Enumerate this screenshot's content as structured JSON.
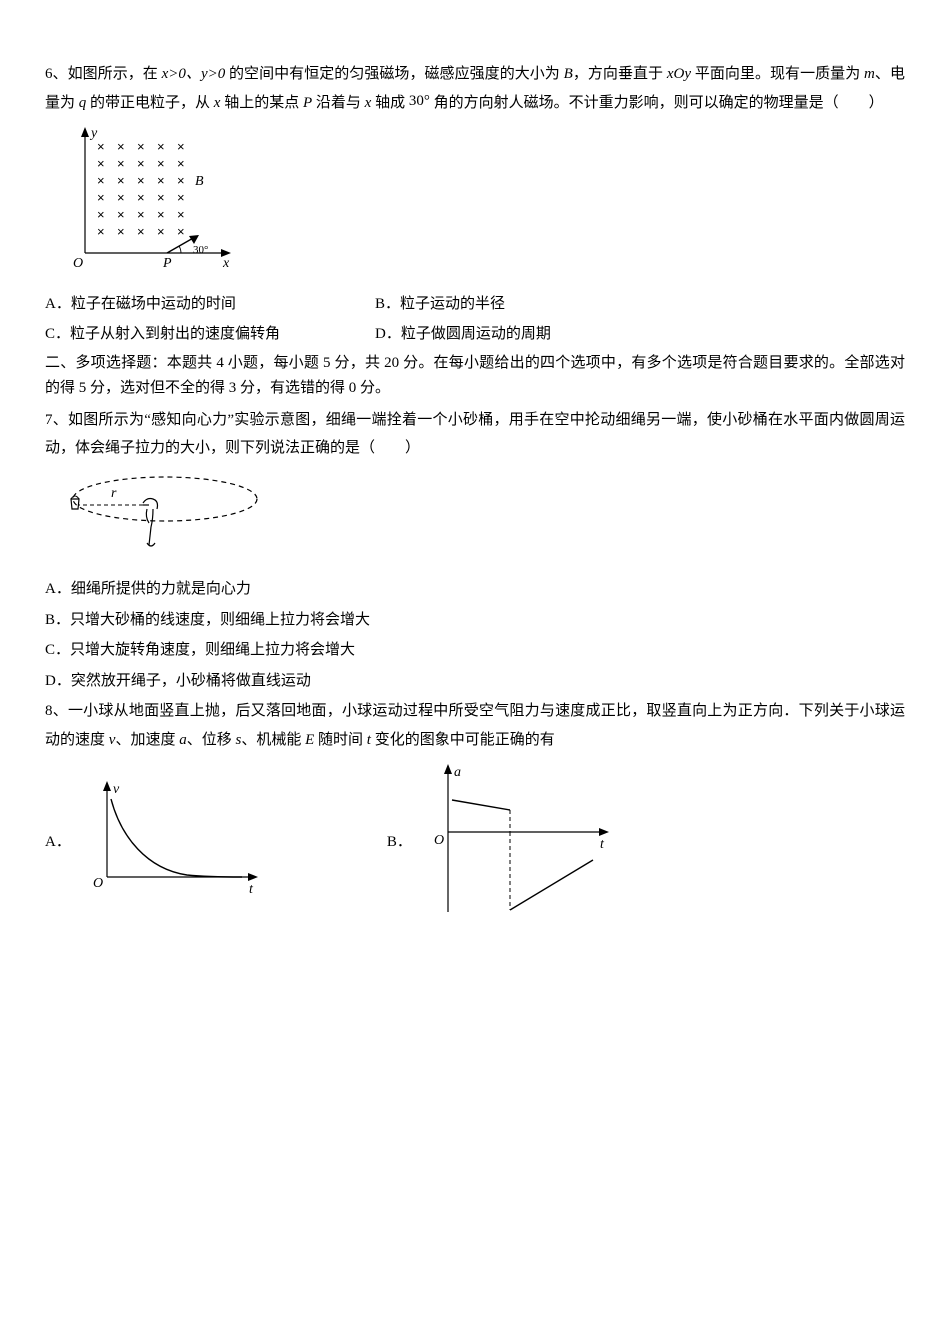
{
  "q6": {
    "number": "6、",
    "text_before_frac": "如图所示，在 ",
    "cond": "x>0、y>0",
    "text_mid1": " 的空间中有恒定的匀强磁场，磁感应强度的大小为 ",
    "B": "B",
    "text_mid2": "，方向垂直于 ",
    "xOy": "xOy",
    "text_mid3": " 平面向里。现有一质量为 ",
    "m": "m",
    "text_mid4": "、电量为 ",
    "q": "q",
    "text_mid5": " 的带正电粒子，从 ",
    "x1": "x",
    "text_mid6": " 轴上的某点 ",
    "P": "P",
    "text_mid7": " 沿着与 ",
    "x2": "x",
    "text_mid8": " 轴成 ",
    "angle": "30°",
    "text_mid9": " 角的方向射人磁场。不计重力影响，则可以确定的物理量是（　　）",
    "figure": {
      "axis_y_label": "y",
      "axis_x_label": "x",
      "origin_label": "O",
      "B_label": "B",
      "P_label": "P",
      "angle_label": "30°",
      "cross_color": "#000000",
      "line_color": "#000000",
      "rows": 6,
      "cols": 5
    },
    "options": {
      "A": "A．粒子在磁场中运动的时间",
      "B": "B．粒子运动的半径",
      "C": "C．粒子从射入到射出的速度偏转角",
      "D": "D．粒子做圆周运动的周期"
    }
  },
  "section2": {
    "title": "二、多项选择题：本题共 4 小题，每小题 5 分，共 20 分。在每小题给出的四个选项中，有多个选项是符合题目要求的。全部选对的得 5 分，选对但不全的得 3 分，有选错的得 0 分。"
  },
  "q7": {
    "number": "7、",
    "text": "如图所示为“感知向心力”实验示意图，细绳一端拴着一个小砂桶，用手在空中抡动细绳另一端，使小砂桶在水平面内做圆周运动，体会绳子拉力的大小，则下列说法正确的是（　　）",
    "figure": {
      "r_label": "r",
      "line_color": "#000000",
      "dash": "4 3"
    },
    "options": {
      "A": "A．细绳所提供的力就是向心力",
      "B": "B．只增大砂桶的线速度，则细绳上拉力将会增大",
      "C": "C．只增大旋转角速度，则细绳上拉力将会增大",
      "D": "D．突然放开绳子，小砂桶将做直线运动"
    }
  },
  "q8": {
    "number": "8、",
    "text_before": "一小球从地面竖直上抛，后又落回地面，小球运动过程中所受空气阻力与速度成正比，取竖直向上为正方向．下列关于小球运动的速度 ",
    "v": "v",
    "t1": "、加速度 ",
    "a": "a",
    "t2": "、位移 ",
    "s": "s",
    "t3": "、机械能 ",
    "E": "E",
    "t4": " 随时间 ",
    "time": "t",
    "t5": " 变化的图象中可能正确的有",
    "graphA": {
      "label": "A．",
      "y_label": "v",
      "x_label": "t",
      "origin": "O",
      "line_color": "#000000"
    },
    "graphB": {
      "label": "B．",
      "y_label": "a",
      "x_label": "t",
      "origin": "O",
      "line_color": "#000000"
    }
  }
}
